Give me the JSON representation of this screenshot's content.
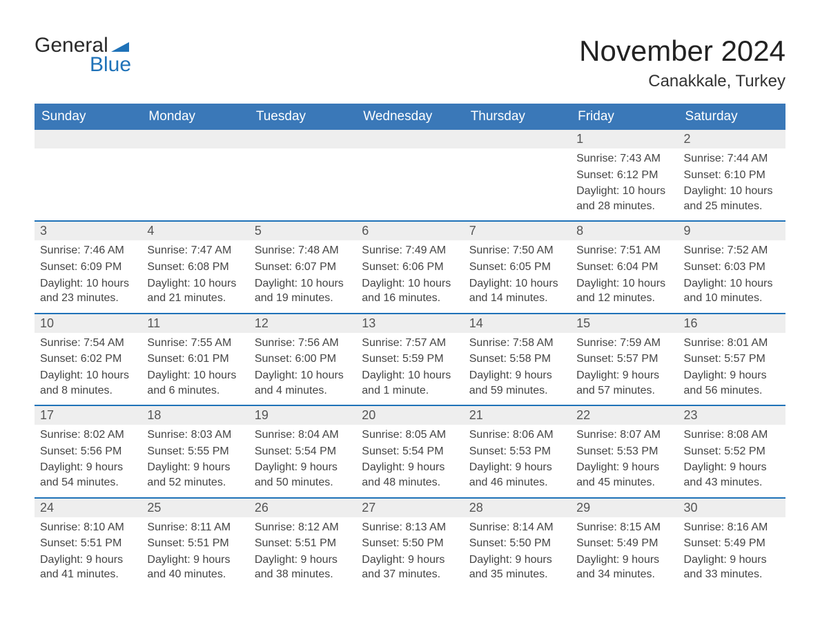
{
  "brand": {
    "word1": "General",
    "word2": "Blue",
    "accent": "#1f72b8"
  },
  "title": "November 2024",
  "location": "Canakkale, Turkey",
  "colors": {
    "header_bg": "#3a78b8",
    "header_text": "#ffffff",
    "daynum_bg": "#eeeeee",
    "rule": "#1f72b8",
    "text": "#333333"
  },
  "columns": [
    "Sunday",
    "Monday",
    "Tuesday",
    "Wednesday",
    "Thursday",
    "Friday",
    "Saturday"
  ],
  "weeks": [
    [
      null,
      null,
      null,
      null,
      null,
      {
        "d": "1",
        "sr": "7:43 AM",
        "ss": "6:12 PM",
        "dl": "10 hours and 28 minutes."
      },
      {
        "d": "2",
        "sr": "7:44 AM",
        "ss": "6:10 PM",
        "dl": "10 hours and 25 minutes."
      }
    ],
    [
      {
        "d": "3",
        "sr": "7:46 AM",
        "ss": "6:09 PM",
        "dl": "10 hours and 23 minutes."
      },
      {
        "d": "4",
        "sr": "7:47 AM",
        "ss": "6:08 PM",
        "dl": "10 hours and 21 minutes."
      },
      {
        "d": "5",
        "sr": "7:48 AM",
        "ss": "6:07 PM",
        "dl": "10 hours and 19 minutes."
      },
      {
        "d": "6",
        "sr": "7:49 AM",
        "ss": "6:06 PM",
        "dl": "10 hours and 16 minutes."
      },
      {
        "d": "7",
        "sr": "7:50 AM",
        "ss": "6:05 PM",
        "dl": "10 hours and 14 minutes."
      },
      {
        "d": "8",
        "sr": "7:51 AM",
        "ss": "6:04 PM",
        "dl": "10 hours and 12 minutes."
      },
      {
        "d": "9",
        "sr": "7:52 AM",
        "ss": "6:03 PM",
        "dl": "10 hours and 10 minutes."
      }
    ],
    [
      {
        "d": "10",
        "sr": "7:54 AM",
        "ss": "6:02 PM",
        "dl": "10 hours and 8 minutes."
      },
      {
        "d": "11",
        "sr": "7:55 AM",
        "ss": "6:01 PM",
        "dl": "10 hours and 6 minutes."
      },
      {
        "d": "12",
        "sr": "7:56 AM",
        "ss": "6:00 PM",
        "dl": "10 hours and 4 minutes."
      },
      {
        "d": "13",
        "sr": "7:57 AM",
        "ss": "5:59 PM",
        "dl": "10 hours and 1 minute."
      },
      {
        "d": "14",
        "sr": "7:58 AM",
        "ss": "5:58 PM",
        "dl": "9 hours and 59 minutes."
      },
      {
        "d": "15",
        "sr": "7:59 AM",
        "ss": "5:57 PM",
        "dl": "9 hours and 57 minutes."
      },
      {
        "d": "16",
        "sr": "8:01 AM",
        "ss": "5:57 PM",
        "dl": "9 hours and 56 minutes."
      }
    ],
    [
      {
        "d": "17",
        "sr": "8:02 AM",
        "ss": "5:56 PM",
        "dl": "9 hours and 54 minutes."
      },
      {
        "d": "18",
        "sr": "8:03 AM",
        "ss": "5:55 PM",
        "dl": "9 hours and 52 minutes."
      },
      {
        "d": "19",
        "sr": "8:04 AM",
        "ss": "5:54 PM",
        "dl": "9 hours and 50 minutes."
      },
      {
        "d": "20",
        "sr": "8:05 AM",
        "ss": "5:54 PM",
        "dl": "9 hours and 48 minutes."
      },
      {
        "d": "21",
        "sr": "8:06 AM",
        "ss": "5:53 PM",
        "dl": "9 hours and 46 minutes."
      },
      {
        "d": "22",
        "sr": "8:07 AM",
        "ss": "5:53 PM",
        "dl": "9 hours and 45 minutes."
      },
      {
        "d": "23",
        "sr": "8:08 AM",
        "ss": "5:52 PM",
        "dl": "9 hours and 43 minutes."
      }
    ],
    [
      {
        "d": "24",
        "sr": "8:10 AM",
        "ss": "5:51 PM",
        "dl": "9 hours and 41 minutes."
      },
      {
        "d": "25",
        "sr": "8:11 AM",
        "ss": "5:51 PM",
        "dl": "9 hours and 40 minutes."
      },
      {
        "d": "26",
        "sr": "8:12 AM",
        "ss": "5:51 PM",
        "dl": "9 hours and 38 minutes."
      },
      {
        "d": "27",
        "sr": "8:13 AM",
        "ss": "5:50 PM",
        "dl": "9 hours and 37 minutes."
      },
      {
        "d": "28",
        "sr": "8:14 AM",
        "ss": "5:50 PM",
        "dl": "9 hours and 35 minutes."
      },
      {
        "d": "29",
        "sr": "8:15 AM",
        "ss": "5:49 PM",
        "dl": "9 hours and 34 minutes."
      },
      {
        "d": "30",
        "sr": "8:16 AM",
        "ss": "5:49 PM",
        "dl": "9 hours and 33 minutes."
      }
    ]
  ],
  "labels": {
    "sunrise": "Sunrise: ",
    "sunset": "Sunset: ",
    "daylight": "Daylight: "
  }
}
